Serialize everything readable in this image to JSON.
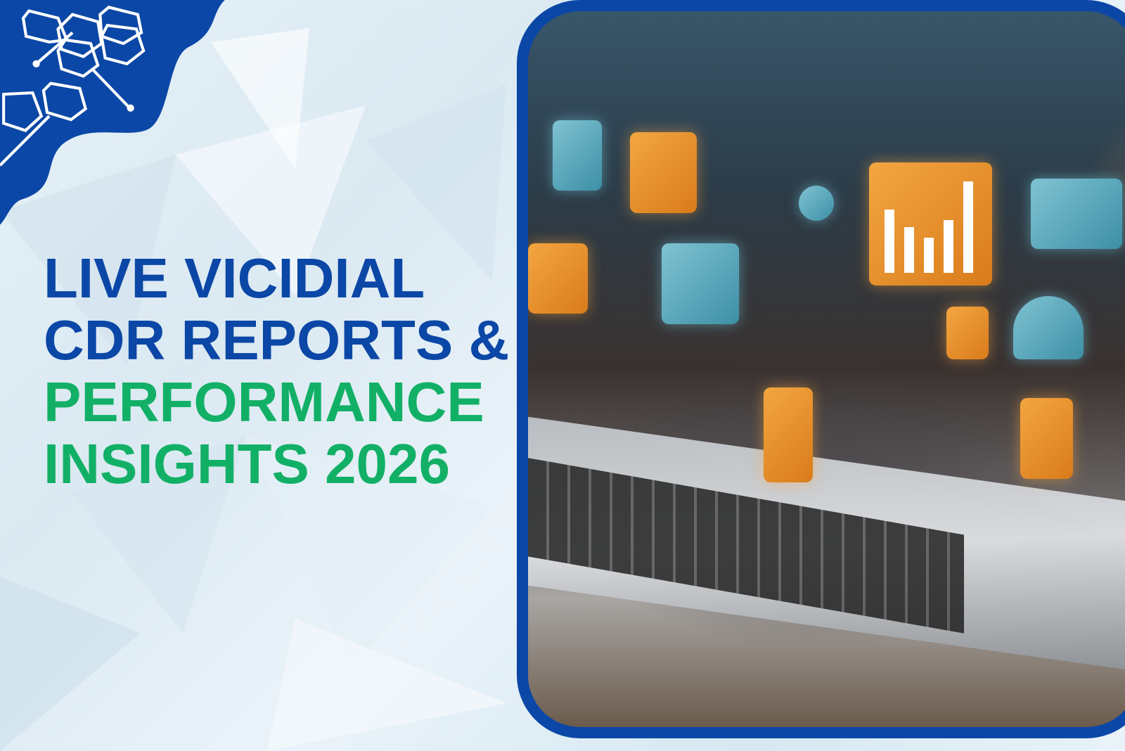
{
  "headline": {
    "line1": "LIVE VICIDIAL",
    "line2": "CDR REPORTS &",
    "line3": "PERFORMANCE",
    "line4": "INSIGHTS 2026"
  },
  "colors": {
    "blue": "#0b47a6",
    "green": "#12b066",
    "background": "#e6f1f8",
    "icon_orange": "#f3a641"
  },
  "icons": [
    "hexagon-network-graphic",
    "bar-chart-icon",
    "user-icon",
    "gear-icon",
    "cloud-icon",
    "location-pin-icon",
    "tablet-icon"
  ]
}
